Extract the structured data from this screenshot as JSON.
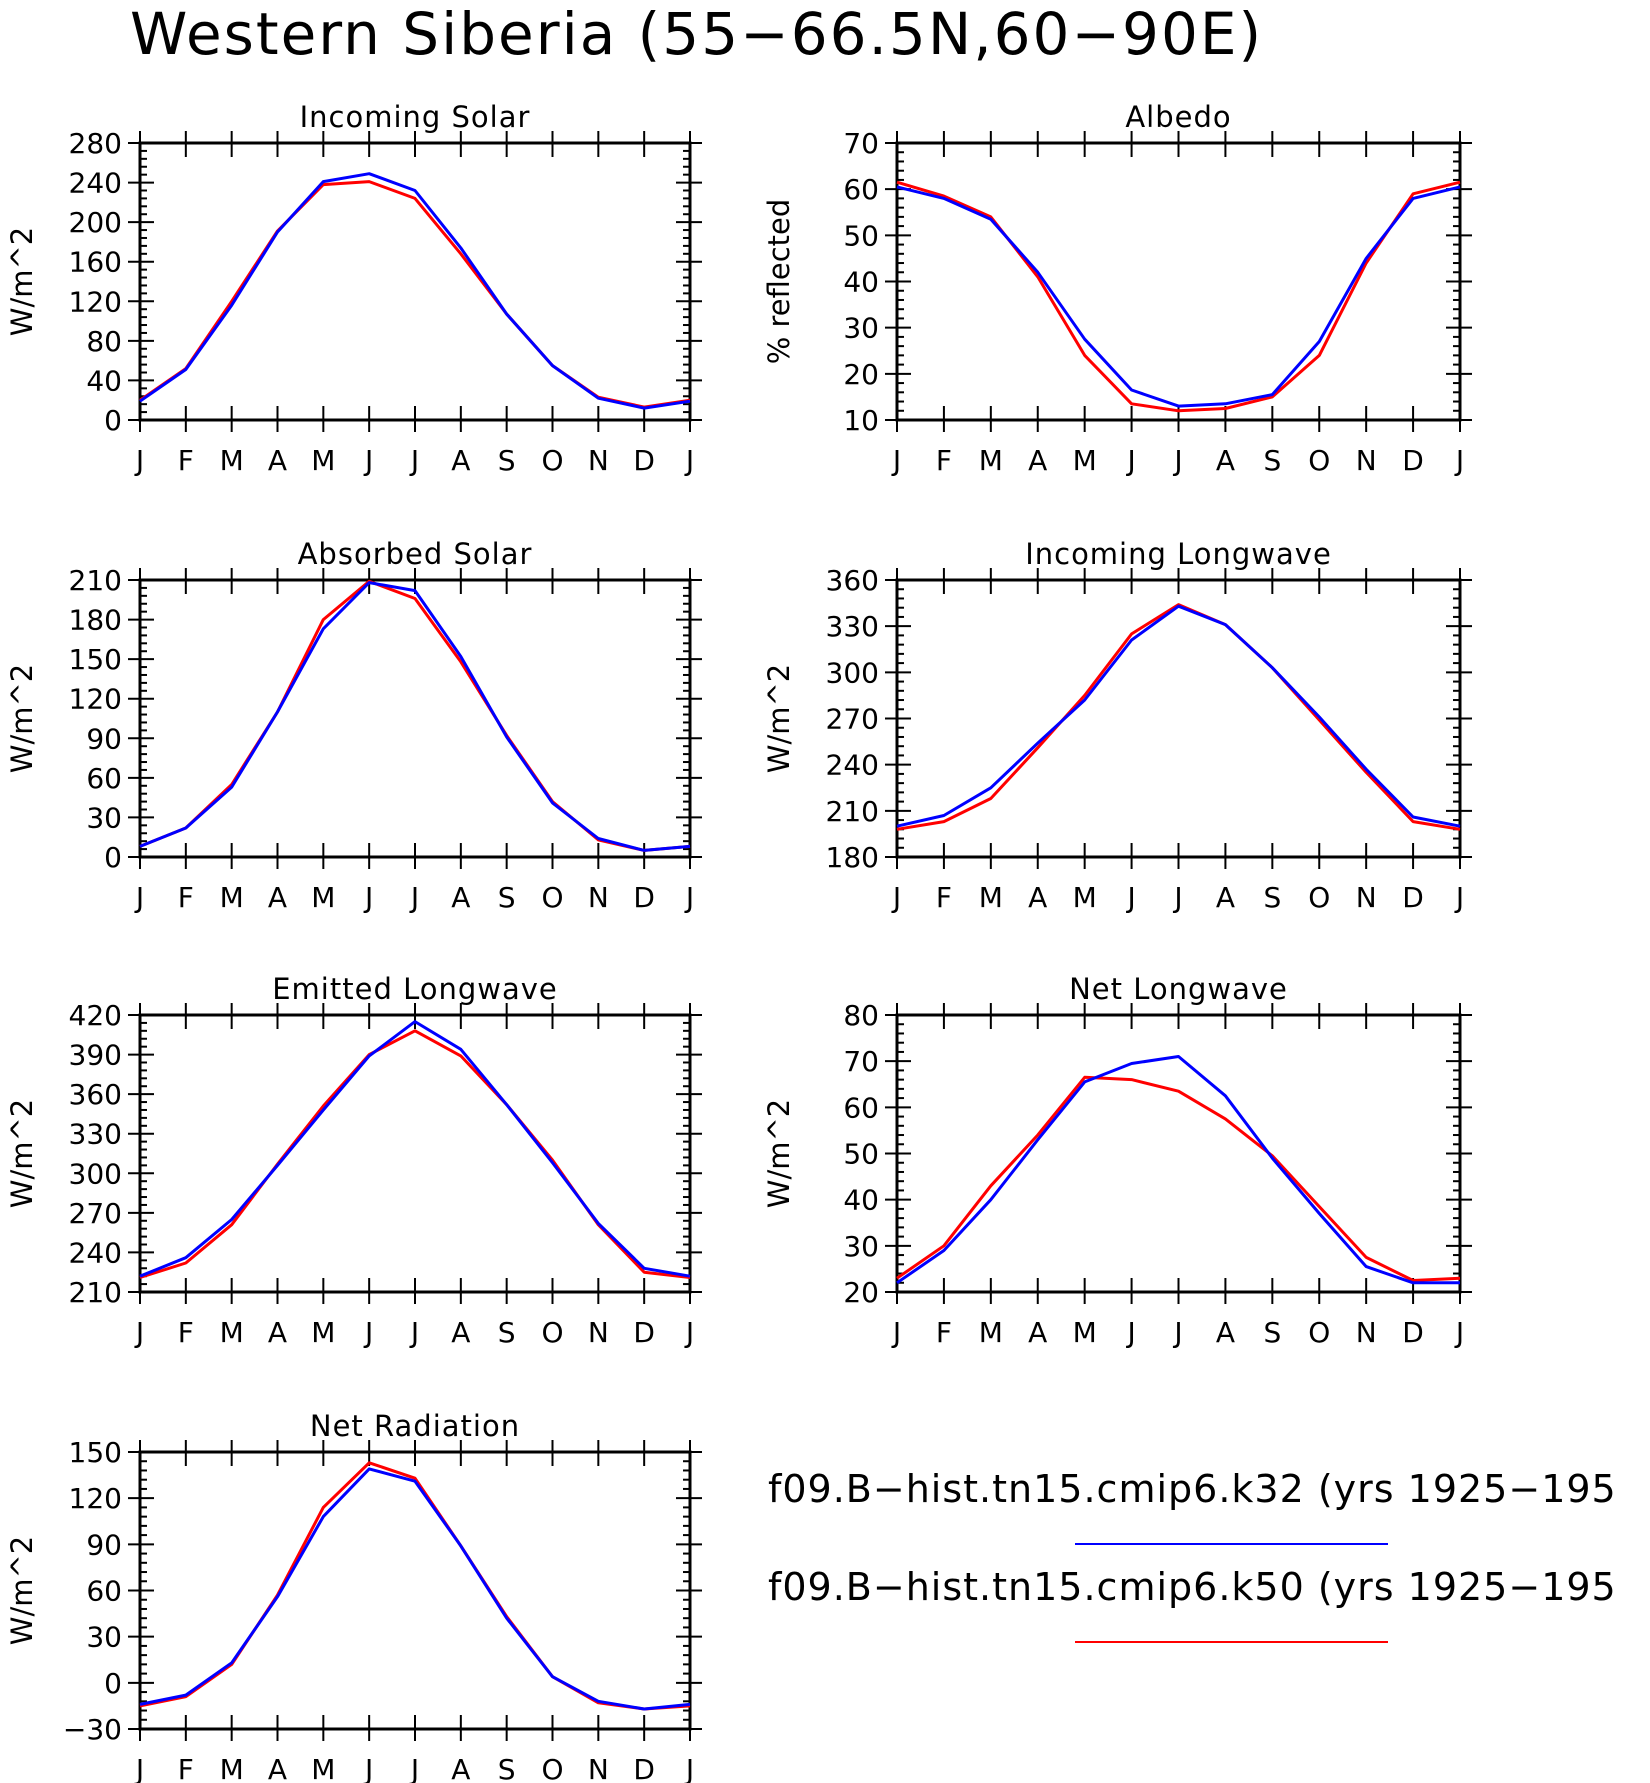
{
  "title": "Western Siberia (55−66.5N,60−90E)",
  "months": [
    "J",
    "F",
    "M",
    "A",
    "M",
    "J",
    "J",
    "A",
    "S",
    "O",
    "N",
    "D",
    "J"
  ],
  "colors": {
    "k32": "#0000ff",
    "k50": "#ff0000"
  },
  "legend": [
    {
      "label": "f09.B−hist.tn15.cmip6.k32 (yrs 1925−195",
      "color": "#0000ff"
    },
    {
      "label": "f09.B−hist.tn15.cmip6.k50 (yrs 1925−195",
      "color": "#ff0000"
    }
  ],
  "chart_data": [
    {
      "type": "line",
      "title": "Incoming Solar",
      "ylabel": "W/m^2",
      "ylim": [
        0,
        280
      ],
      "yticks": [
        0,
        40,
        80,
        120,
        160,
        200,
        240,
        280
      ],
      "series": [
        {
          "values": [
            19,
            51,
            116,
            190,
            241,
            249,
            232,
            174,
            107,
            55,
            22,
            12,
            19
          ]
        },
        {
          "values": [
            20,
            52,
            120,
            191,
            238,
            241,
            224,
            168,
            107,
            55,
            23,
            13,
            20
          ]
        }
      ]
    },
    {
      "type": "line",
      "title": "Albedo",
      "ylabel": "% reflected",
      "ylim": [
        10,
        70
      ],
      "yticks": [
        10,
        20,
        30,
        40,
        50,
        60,
        70
      ],
      "series": [
        {
          "values": [
            60.5,
            58,
            53.5,
            42,
            27.5,
            16.5,
            13,
            13.5,
            15.5,
            27,
            45,
            58,
            60.5
          ]
        },
        {
          "values": [
            61.5,
            58.5,
            54,
            41,
            24,
            13.5,
            12,
            12.5,
            15,
            24,
            44,
            59,
            61.5
          ]
        }
      ]
    },
    {
      "type": "line",
      "title": "Absorbed Solar",
      "ylabel": "W/m^2",
      "ylim": [
        0,
        210
      ],
      "yticks": [
        0,
        30,
        60,
        90,
        120,
        150,
        180,
        210
      ],
      "series": [
        {
          "values": [
            8,
            22,
            53,
            110,
            173,
            208,
            202,
            152,
            91,
            41,
            14,
            5,
            8
          ]
        },
        {
          "values": [
            8,
            22,
            55,
            110,
            180,
            209,
            196,
            148,
            92,
            42,
            13,
            5,
            8
          ]
        }
      ]
    },
    {
      "type": "line",
      "title": "Incoming Longwave",
      "ylabel": "W/m^2",
      "ylim": [
        180,
        360
      ],
      "yticks": [
        180,
        210,
        240,
        270,
        300,
        330,
        360
      ],
      "series": [
        {
          "values": [
            200,
            207,
            225,
            254,
            282,
            321,
            343,
            331,
            303,
            271,
            237,
            206,
            200
          ]
        },
        {
          "values": [
            198,
            203,
            218,
            251,
            285,
            325,
            344,
            331,
            303,
            269,
            235,
            203,
            198
          ]
        }
      ]
    },
    {
      "type": "line",
      "title": "Emitted Longwave",
      "ylabel": "W/m^2",
      "ylim": [
        210,
        420
      ],
      "yticks": [
        210,
        240,
        270,
        300,
        330,
        360,
        390,
        420
      ],
      "series": [
        {
          "values": [
            222,
            236,
            265,
            306,
            348,
            389,
            415,
            394,
            352,
            308,
            262,
            228,
            222
          ]
        },
        {
          "values": [
            221,
            232,
            261,
            307,
            351,
            390,
            408,
            389,
            352,
            310,
            261,
            225,
            221
          ]
        }
      ]
    },
    {
      "type": "line",
      "title": "Net Longwave",
      "ylabel": "W/m^2",
      "ylim": [
        20,
        80
      ],
      "yticks": [
        20,
        30,
        40,
        50,
        60,
        70,
        80
      ],
      "series": [
        {
          "values": [
            22,
            29,
            40,
            53,
            65.5,
            69.5,
            71,
            62.5,
            49,
            37,
            25.5,
            22,
            22
          ]
        },
        {
          "values": [
            23,
            30,
            43,
            54,
            66.5,
            66,
            63.5,
            57.5,
            49.5,
            38.5,
            27.5,
            22.5,
            23
          ]
        }
      ]
    },
    {
      "type": "line",
      "title": "Net Radiation",
      "ylabel": "W/m^2",
      "ylim": [
        -30,
        150
      ],
      "yticks": [
        -30,
        0,
        30,
        60,
        90,
        120,
        150
      ],
      "series": [
        {
          "values": [
            -14,
            -8,
            13,
            56,
            108,
            139,
            131,
            89,
            42,
            4,
            -12,
            -17,
            -14
          ]
        },
        {
          "values": [
            -15,
            -9,
            12,
            57,
            114,
            143,
            133,
            89,
            43,
            4,
            -13,
            -17,
            -15
          ]
        }
      ]
    }
  ]
}
